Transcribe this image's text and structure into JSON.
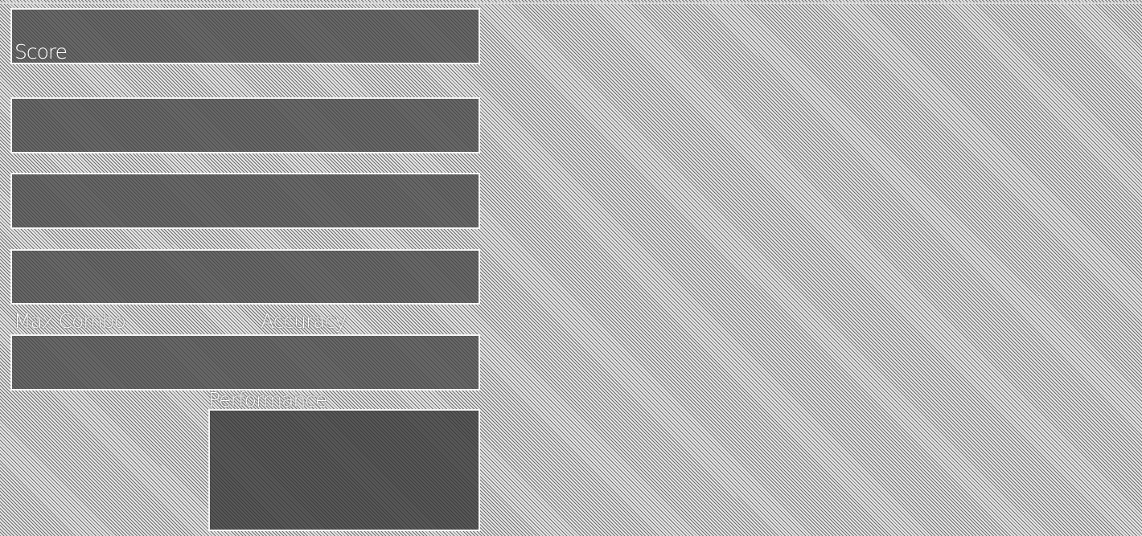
{
  "results": {
    "score_label": "Score",
    "max_combo_label": "Max Combo",
    "accuracy_label": "Accuracy",
    "performance_label": "Performance"
  }
}
